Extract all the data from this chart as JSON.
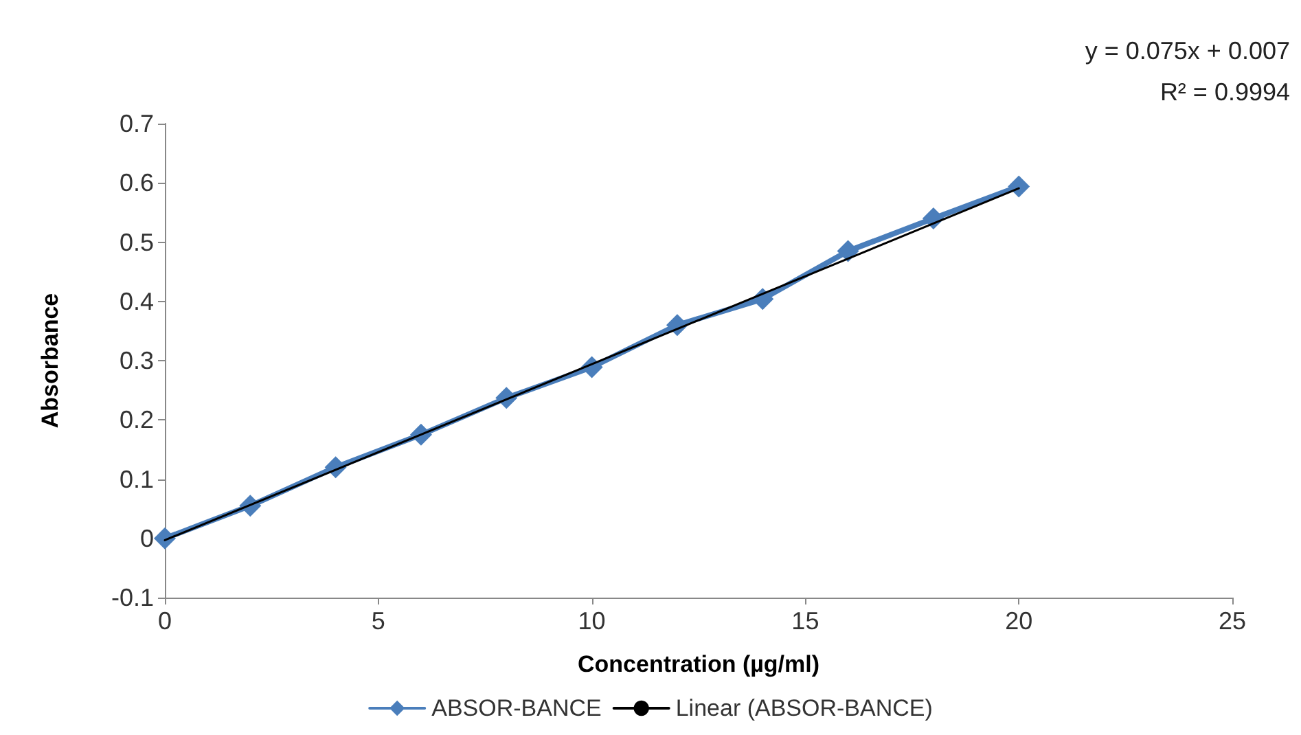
{
  "chart_data": {
    "type": "line",
    "xlabel": "Concentration (µg/ml)",
    "ylabel": "Absorbance",
    "xlim": [
      0,
      25
    ],
    "xticks": [
      0,
      5,
      10,
      15,
      20,
      25
    ],
    "ylim": [
      -0.1,
      0.7
    ],
    "yticks": [
      -0.1,
      0,
      0.1,
      0.2,
      0.3,
      0.4,
      0.5,
      0.6,
      0.7
    ],
    "series": [
      {
        "name": "ABSOR-BANCE",
        "color": "#4a7ebb",
        "marker": "diamond",
        "x": [
          0,
          2,
          4,
          6,
          8,
          10,
          12,
          14,
          16,
          18,
          20
        ],
        "values": [
          0,
          0.055,
          0.12,
          0.175,
          0.237,
          0.289,
          0.36,
          0.404,
          0.485,
          0.54,
          0.594
        ]
      },
      {
        "name": "Linear (ABSOR-BANCE)",
        "color": "#000000",
        "marker": "none",
        "x": [
          0,
          20
        ],
        "values": [
          -0.003,
          0.591
        ]
      }
    ],
    "annotations": [
      "y = 0.075x + 0.007",
      "R² = 0.9994"
    ],
    "legend": "bottom",
    "grid": false
  }
}
